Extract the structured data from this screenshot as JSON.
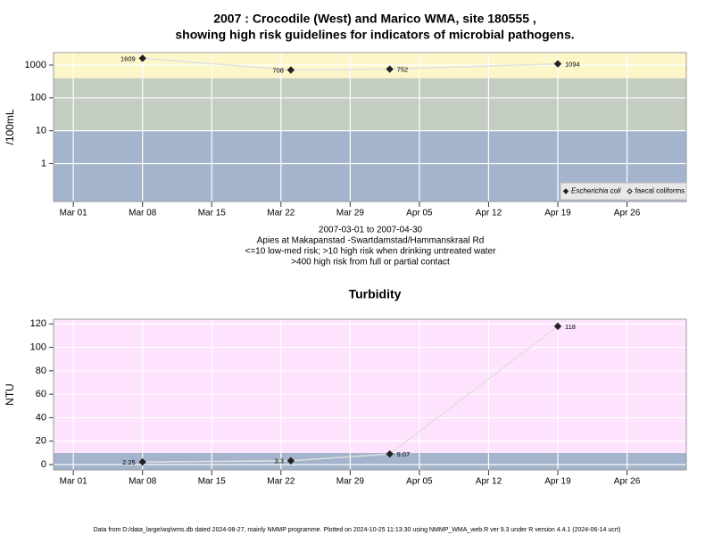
{
  "chart_data": [
    {
      "type": "line",
      "title": [
        "2007 : Crocodile (West) and Marico WMA, site 180555 ,",
        "showing high risk guidelines for indicators of microbial pathogens."
      ],
      "y_label": "/100mL",
      "notes": [
        "2007-03-01 to 2007-04-30",
        "Apies at Makapanstad -Swartdamstad/Hammanskraal Rd",
        "<=10 low-med risk; >10 high risk when drinking untreated water",
        ">400 high risk from full or partial contact"
      ],
      "x": [
        "2007-03-08",
        "2007-03-23",
        "2007-04-02",
        "2007-04-19"
      ],
      "series": [
        {
          "name": "Escherichia coli",
          "color": "#222222",
          "marker": "filled",
          "values": [
            1609,
            708,
            752,
            1094
          ]
        },
        {
          "name": "faecal coliforms",
          "color": "#222222",
          "marker": "open",
          "values": [
            null,
            null,
            null,
            null
          ]
        }
      ],
      "log_y": true,
      "ylim": [
        0.07,
        2400
      ],
      "yticks": [
        1,
        10,
        100,
        1000
      ],
      "xlim": [
        "2007-02-27",
        "2007-05-02"
      ],
      "xticks": [
        {
          "value": "2007-03-01",
          "label": "Mar 01"
        },
        {
          "value": "2007-03-08",
          "label": "Mar 08"
        },
        {
          "value": "2007-03-15",
          "label": "Mar 15"
        },
        {
          "value": "2007-03-22",
          "label": "Mar 22"
        },
        {
          "value": "2007-03-29",
          "label": "Mar 29"
        },
        {
          "value": "2007-04-05",
          "label": "Apr 05"
        },
        {
          "value": "2007-04-12",
          "label": "Apr 12"
        },
        {
          "value": "2007-04-19",
          "label": "Apr 19"
        },
        {
          "value": "2007-04-26",
          "label": "Apr 26"
        }
      ],
      "bands": [
        {
          "from": 0.07,
          "to": 10,
          "color": "#a3b4cc"
        },
        {
          "from": 10,
          "to": 400,
          "color": "#c4cdc1"
        },
        {
          "from": 400,
          "to": 2400,
          "color": "#fdf6c9"
        }
      ],
      "legend": "bottom right",
      "grid": true
    },
    {
      "type": "line",
      "title": [
        "Turbidity"
      ],
      "y_label": "NTU",
      "x": [
        "2007-03-08",
        "2007-03-23",
        "2007-04-02",
        "2007-04-19"
      ],
      "series": [
        {
          "name": "Turbidity",
          "color": "#222222",
          "marker": "filled",
          "values": [
            2.25,
            3.3,
            9.07,
            118
          ]
        }
      ],
      "log_y": false,
      "ylim": [
        -4.5,
        124
      ],
      "yticks": [
        0,
        20,
        40,
        60,
        80,
        100,
        120
      ],
      "xlim": [
        "2007-02-27",
        "2007-05-02"
      ],
      "xticks": [
        {
          "value": "2007-03-01",
          "label": "Mar 01"
        },
        {
          "value": "2007-03-08",
          "label": "Mar 08"
        },
        {
          "value": "2007-03-15",
          "label": "Mar 15"
        },
        {
          "value": "2007-03-22",
          "label": "Mar 22"
        },
        {
          "value": "2007-03-29",
          "label": "Mar 29"
        },
        {
          "value": "2007-04-05",
          "label": "Apr 05"
        },
        {
          "value": "2007-04-12",
          "label": "Apr 12"
        },
        {
          "value": "2007-04-19",
          "label": "Apr 19"
        },
        {
          "value": "2007-04-26",
          "label": "Apr 26"
        }
      ],
      "bands": [
        {
          "from": -4.5,
          "to": 10,
          "color": "#a3b4cc"
        },
        {
          "from": 10,
          "to": 124,
          "color": "#fde3fd"
        }
      ],
      "grid": true
    }
  ],
  "footer": "Data from D:/data_large/wq/wms.db dated 2024-08-27, mainly NMMP programme. Plotted on 2024-10-25 11:13:30 using NMMP_WMA_web.R ver 9.3 under R version 4.4.1 (2024-06-14 ucrt)"
}
